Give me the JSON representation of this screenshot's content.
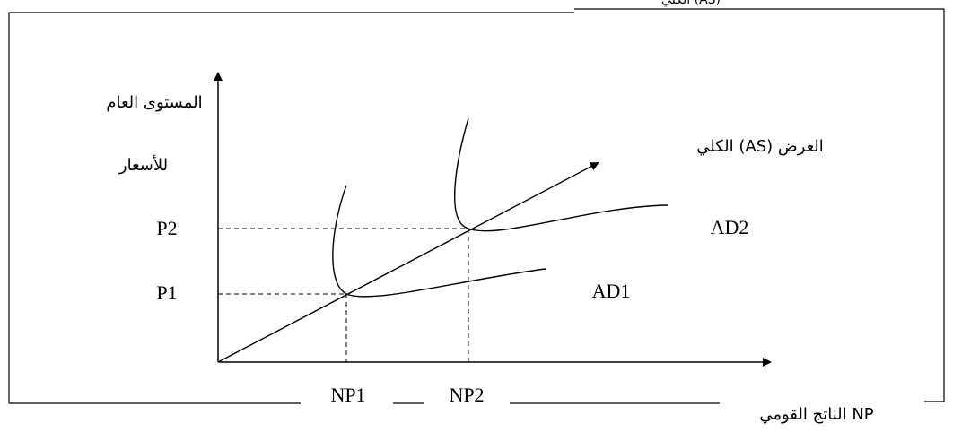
{
  "header_fragment": "(AS) الكلي",
  "y_axis_label_line1": "المستوى العام",
  "y_axis_label_line2": "للأسعار",
  "x_axis_label": "NP الناتج القومي",
  "as_label": "العرض (AS) الكلي",
  "price_levels": {
    "p1": "P1",
    "p2": "P2"
  },
  "output_levels": {
    "np1": "NP1",
    "np2": "NP2"
  },
  "curves": {
    "ad1": "AD1",
    "ad2": "AD2"
  }
}
